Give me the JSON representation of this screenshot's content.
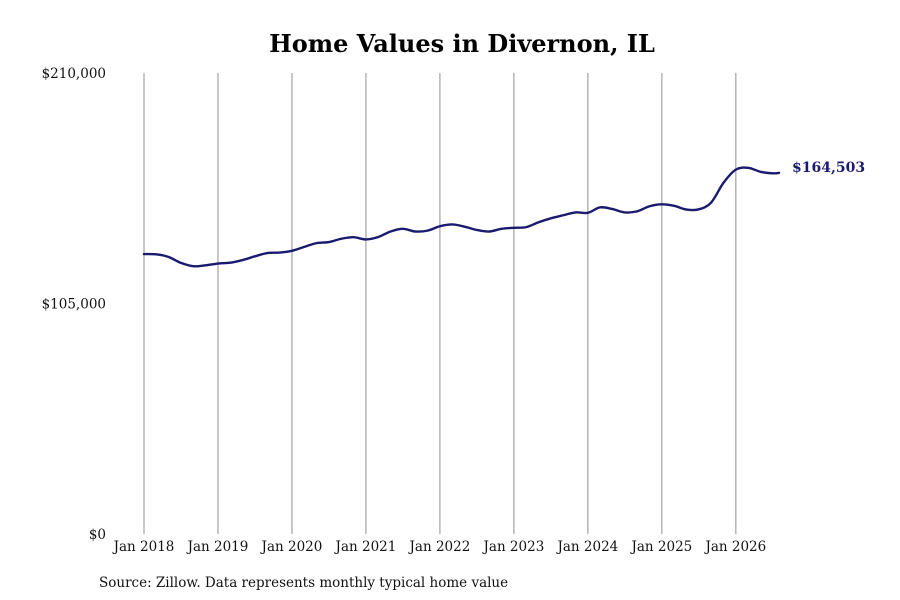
{
  "chart_data": {
    "type": "line",
    "title": "Home Values in Divernon, IL",
    "xlabel": "",
    "ylabel": "",
    "ylim": [
      0,
      210000
    ],
    "y_ticks": [
      0,
      105000,
      210000
    ],
    "y_tick_labels": [
      "$0",
      "$105,000",
      "$210,000"
    ],
    "x_ticks": [
      "2018-01",
      "2019-01",
      "2020-01",
      "2021-01",
      "2022-01",
      "2023-01",
      "2024-01",
      "2025-01",
      "2026-01"
    ],
    "x_tick_labels": [
      "Jan 2018",
      "Jan 2019",
      "Jan 2020",
      "Jan 2021",
      "Jan 2022",
      "Jan 2023",
      "Jan 2024",
      "Jan 2025",
      "Jan 2026"
    ],
    "grid": "vertical",
    "end_label": "$164,503",
    "series": [
      {
        "color": "#1a1a6e",
        "x": [
          "2018-01",
          "2018-03",
          "2018-05",
          "2018-07",
          "2018-09",
          "2018-11",
          "2019-01",
          "2019-03",
          "2019-05",
          "2019-07",
          "2019-09",
          "2019-11",
          "2020-01",
          "2020-03",
          "2020-05",
          "2020-07",
          "2020-09",
          "2020-11",
          "2021-01",
          "2021-03",
          "2021-05",
          "2021-07",
          "2021-09",
          "2021-11",
          "2022-01",
          "2022-03",
          "2022-05",
          "2022-07",
          "2022-09",
          "2022-11",
          "2023-01",
          "2023-03",
          "2023-05",
          "2023-07",
          "2023-09",
          "2023-11",
          "2024-01",
          "2024-03",
          "2024-05",
          "2024-07",
          "2024-09",
          "2024-11",
          "2025-01",
          "2025-03",
          "2025-05",
          "2025-07",
          "2025-09",
          "2025-11",
          "2026-01",
          "2026-03",
          "2026-05",
          "2026-07",
          "2026-08"
        ],
        "values": [
          127500,
          127400,
          126200,
          123500,
          122000,
          122400,
          123200,
          123600,
          124800,
          126500,
          128000,
          128200,
          129000,
          130800,
          132500,
          133000,
          134500,
          135200,
          134200,
          135300,
          137800,
          139000,
          137800,
          138200,
          140200,
          141000,
          140000,
          138500,
          137800,
          139000,
          139500,
          139800,
          142000,
          143800,
          145200,
          146500,
          146300,
          148800,
          148000,
          146500,
          147000,
          149300,
          150200,
          149500,
          147800,
          147900,
          151000,
          160000,
          166000,
          166800,
          165000,
          164300,
          164503
        ]
      }
    ]
  },
  "footer": {
    "source": "Source: Zillow. Data represents monthly typical home value"
  }
}
